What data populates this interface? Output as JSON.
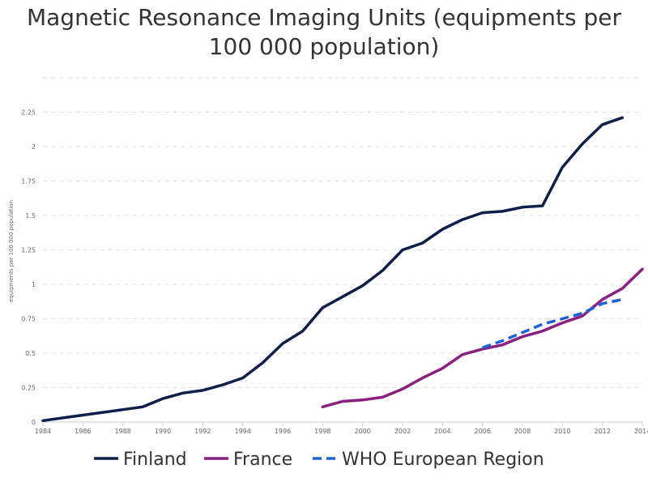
{
  "chart_data": {
    "type": "line",
    "title_line1": "Magnetic Resonance Imaging Units (equipments per",
    "title_line2": "100 000 population)",
    "ylabel": "equipments per 100 000 population",
    "xlim": [
      1984,
      2014
    ],
    "ylim": [
      0,
      2.5
    ],
    "x_ticks": [
      "1984",
      "1986",
      "1988",
      "1990",
      "1992",
      "1994",
      "1996",
      "1998",
      "2000",
      "2002",
      "2004",
      "2006",
      "2008",
      "2010",
      "2012",
      "2014"
    ],
    "y_ticks": [
      "0",
      "0.25",
      "0.5",
      "0.75",
      "1",
      "1.25",
      "1.5",
      "1.75",
      "2",
      "2.25"
    ],
    "grid": true,
    "legend_position": "bottom",
    "series": [
      {
        "name": "Finland",
        "color": "#0d1f4a",
        "dashed": false,
        "points": [
          [
            1984,
            0.01
          ],
          [
            1985,
            0.03
          ],
          [
            1986,
            0.05
          ],
          [
            1987,
            0.07
          ],
          [
            1988,
            0.09
          ],
          [
            1989,
            0.11
          ],
          [
            1990,
            0.17
          ],
          [
            1991,
            0.21
          ],
          [
            1992,
            0.23
          ],
          [
            1993,
            0.27
          ],
          [
            1994,
            0.32
          ],
          [
            1995,
            0.43
          ],
          [
            1996,
            0.57
          ],
          [
            1997,
            0.66
          ],
          [
            1998,
            0.83
          ],
          [
            1999,
            0.91
          ],
          [
            2000,
            0.99
          ],
          [
            2001,
            1.1
          ],
          [
            2002,
            1.25
          ],
          [
            2003,
            1.3
          ],
          [
            2004,
            1.4
          ],
          [
            2005,
            1.47
          ],
          [
            2006,
            1.52
          ],
          [
            2007,
            1.53
          ],
          [
            2008,
            1.56
          ],
          [
            2009,
            1.57
          ],
          [
            2010,
            1.85
          ],
          [
            2011,
            2.02
          ],
          [
            2012,
            2.16
          ],
          [
            2013,
            2.21
          ]
        ]
      },
      {
        "name": "France",
        "color": "#8b1f7f",
        "dashed": false,
        "points": [
          [
            1998,
            0.11
          ],
          [
            1999,
            0.15
          ],
          [
            2000,
            0.16
          ],
          [
            2001,
            0.18
          ],
          [
            2002,
            0.24
          ],
          [
            2003,
            0.32
          ],
          [
            2004,
            0.39
          ],
          [
            2005,
            0.49
          ],
          [
            2006,
            0.53
          ],
          [
            2007,
            0.56
          ],
          [
            2008,
            0.62
          ],
          [
            2009,
            0.66
          ],
          [
            2010,
            0.72
          ],
          [
            2011,
            0.77
          ],
          [
            2012,
            0.89
          ],
          [
            2013,
            0.97
          ],
          [
            2014,
            1.11
          ]
        ]
      },
      {
        "name": "WHO European Region",
        "color": "#1e63d6",
        "dashed": true,
        "points": [
          [
            2006,
            0.54
          ],
          [
            2007,
            0.59
          ],
          [
            2008,
            0.65
          ],
          [
            2009,
            0.71
          ],
          [
            2010,
            0.75
          ],
          [
            2011,
            0.79
          ],
          [
            2012,
            0.86
          ],
          [
            2013,
            0.89
          ]
        ]
      }
    ]
  }
}
